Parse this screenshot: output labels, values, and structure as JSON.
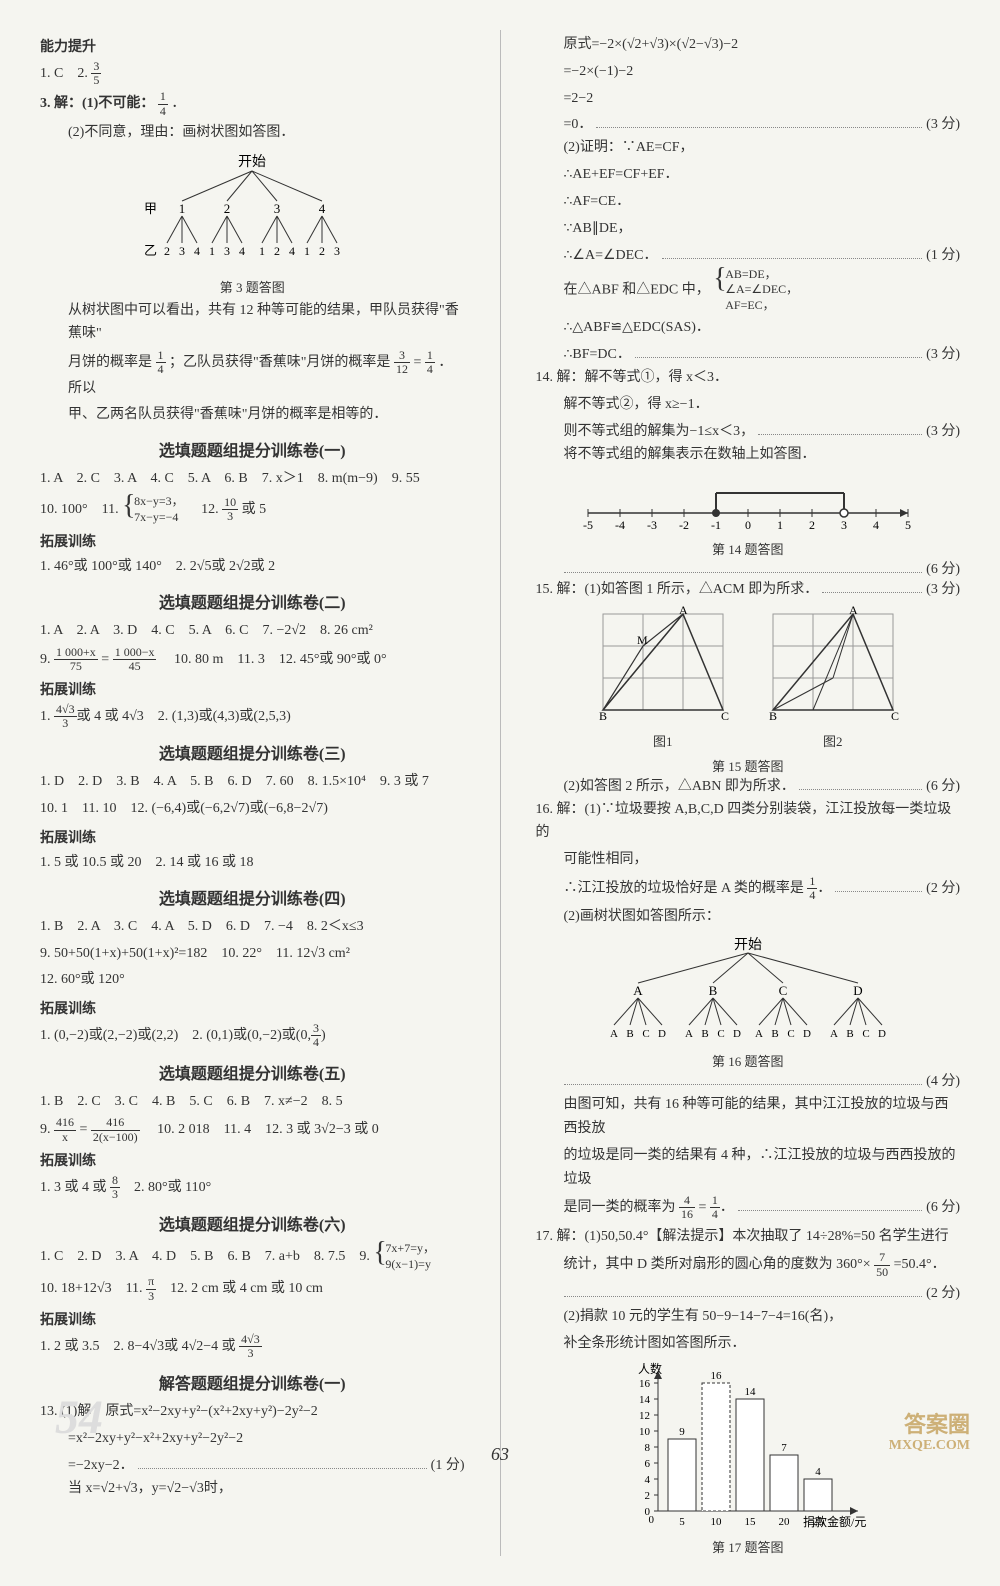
{
  "left": {
    "ability_head": "能力提升",
    "a1": "1. C　2. ",
    "a1_frac_num": "3",
    "a1_frac_den": "5",
    "a3_1": "3. 解：(1)不可能：",
    "a3_1_frac_num": "1",
    "a3_1_frac_den": "4",
    "a3_1_tail": "．",
    "a3_2": "(2)不同意，理由：画树状图如答图．",
    "tree_title": "开始",
    "tree_jia": "甲",
    "tree_yi": "乙",
    "tree_caption": "第 3 题答图",
    "a3_txt1": "从树状图中可以看出，共有 12 种等可能的结果，甲队员获得\"香蕉味\"",
    "a3_txt2a": "月饼的概率是 ",
    "a3_txt2b": "；乙队员获得\"香蕉味\"月饼的概率是 ",
    "a3_txt2c": " = ",
    "a3_txt2d": "．所以",
    "a3_f1n": "1",
    "a3_f1d": "4",
    "a3_f2n": "3",
    "a3_f2d": "12",
    "a3_f3n": "1",
    "a3_f3d": "4",
    "a3_txt3": "甲、乙两名队员获得\"香蕉味\"月饼的概率是相等的．",
    "s1_title": "选填题题组提分训练卷(一)",
    "s1_l1": "1. A　2. C　3. A　4. C　5. A　6. B　7. x＞1　8. m(m−9)　9. 55",
    "s1_l2a": "10. 100°　11. ",
    "s1_sys1": "8x−y=3，",
    "s1_sys2": "7x−y=−4",
    "s1_l2b": "　12. ",
    "s1_f_n": "10",
    "s1_f_d": "3",
    "s1_l2c": " 或 5",
    "s1_ext": "拓展训练",
    "s1_e1": "1. 46°或 100°或 140°　2. 2√5或 2√2或 2",
    "s2_title": "选填题题组提分训练卷(二)",
    "s2_l1": "1. A　2. A　3. D　4. C　5. A　6. C　7. −2√2　8. 26 cm²",
    "s2_l2a": "9. ",
    "s2_f1n": "1 000+x",
    "s2_f1d": "75",
    "s2_eq": " = ",
    "s2_f2n": "1 000−x",
    "s2_f2d": "45",
    "s2_l2b": "　10. 80 m　11. 3　12. 45°或 90°或 0°",
    "s2_ext": "拓展训练",
    "s2_e1a": "1. ",
    "s2_ef_n": "4√3",
    "s2_ef_d": "3",
    "s2_e1b": "或 4 或 4√3　2. (1,3)或(4,3)或(2,5,3)",
    "s3_title": "选填题题组提分训练卷(三)",
    "s3_l1": "1. D　2. D　3. B　4. A　5. B　6. D　7. 60　8. 1.5×10⁴　9. 3 或 7",
    "s3_l2": "10. 1　11. 10　12. (−6,4)或(−6,2√7)或(−6,8−2√7)",
    "s3_ext": "拓展训练",
    "s3_e1": "1. 5 或 10.5 或 20　2. 14 或 16 或 18",
    "s4_title": "选填题题组提分训练卷(四)",
    "s4_l1": "1. B　2. A　3. C　4. A　5. D　6. D　7. −4　8. 2＜x≤3",
    "s4_l2": "9. 50+50(1+x)+50(1+x)²=182　10. 22°　11. 12√3 cm²",
    "s4_l3": "12. 60°或 120°",
    "s4_ext": "拓展训练",
    "s4_e1a": "1. (0,−2)或(2,−2)或(2,2)　2. (0,1)或(0,−2)或(0,",
    "s4_ef_n": "3",
    "s4_ef_d": "4",
    "s4_e1b": ")",
    "s5_title": "选填题题组提分训练卷(五)",
    "s5_l1": "1. B　2. C　3. C　4. B　5. C　6. B　7. x≠−2　8. 5",
    "s5_l2a": "9. ",
    "s5_f1n": "416",
    "s5_f1d": "x",
    "s5_eq": " = ",
    "s5_f2n": "416",
    "s5_f2d": "2(x−100)",
    "s5_l2b": "　10. 2 018　11. 4　12. 3 或 3√2−3 或 0",
    "s5_ext": "拓展训练",
    "s5_e1a": "1. 3 或 4 或 ",
    "s5_ef_n": "8",
    "s5_ef_d": "3",
    "s5_e1b": "　2. 80°或 110°",
    "s6_title": "选填题题组提分训练卷(六)",
    "s6_l1a": "1. C　2. D　3. A　4. D　5. B　6. B　7. a+b　8. 7.5　9. ",
    "s6_sys1": "7x+7=y，",
    "s6_sys2": "9(x−1)=y",
    "s6_l2a": "10. 18+12√3　11. ",
    "s6_f_n": "π",
    "s6_f_d": "3",
    "s6_l2b": "　12. 2 cm 或 4 cm 或 10 cm",
    "s6_ext": "拓展训练",
    "s6_e1a": "1. 2 或 3.5　2. 8−4√3或 4√2−4 或 ",
    "s6_ef_n": "4√3",
    "s6_ef_d": "3",
    "ans_title": "解答题题组提分训练卷(一)",
    "ans_13a": "13. (1)解：原式=x²−2xy+y²−(x²+2xy+y²)−2y²−2",
    "ans_13b": "=x²−2xy+y²−x²+2xy+y²−2y²−2",
    "ans_13c_txt": "=−2xy−2．",
    "ans_13c_pts": "(1 分)",
    "ans_13d": "当 x=√2+√3，y=√2−√3时，"
  },
  "right": {
    "r1": "原式=−2×(√2+√3)×(√2−√3)−2",
    "r2": "=−2×(−1)−2",
    "r3": "=2−2",
    "r4_txt": "=0．",
    "r4_pts": "(3 分)",
    "r5": "(2)证明：∵AE=CF，",
    "r6": "∴AE+EF=CF+EF．",
    "r7": "∴AF=CE．",
    "r8": "∵AB∥DE，",
    "r9_txt": "∴∠A=∠DEC．",
    "r9_pts": "(1 分)",
    "r10a": "在△ABF 和△EDC 中，",
    "r10_s1": "AB=DE，",
    "r10_s2": "∠A=∠DEC，",
    "r10_s3": "AF=EC，",
    "r11": "∴△ABF≌△EDC(SAS)．",
    "r12_txt": "∴BF=DC．",
    "r12_pts": "(3 分)",
    "r14_1": "14. 解：解不等式①，得 x＜3．",
    "r14_2_txt": "解不等式②，得 x≥−1．",
    "r14_3_txt": "则不等式组的解集为−1≤x＜3，",
    "r14_3_pts": "(3 分)",
    "r14_4": "将不等式组的解集表示在数轴上如答图．",
    "r14_caption": "第 14 题答图",
    "r14_pts": "(6 分)",
    "r15_1_txt": "15. 解：(1)如答图 1 所示，△ACM 即为所求．",
    "r15_1_pts": "(3 分)",
    "r15_fig1": "图1",
    "r15_fig2": "图2",
    "r15_caption": "第 15 题答图",
    "r15_2_txt": "(2)如答图 2 所示，△ABN 即为所求．",
    "r15_2_pts": "(6 分)",
    "r16_1": "16. 解：(1)∵垃圾要按 A,B,C,D 四类分别装袋，江江投放每一类垃圾的",
    "r16_2": "可能性相同，",
    "r16_3a": "∴江江投放的垃圾恰好是 A 类的概率是 ",
    "r16_3_fn": "1",
    "r16_3_fd": "4",
    "r16_3b": "．",
    "r16_3_pts": "(2 分)",
    "r16_4": "(2)画树状图如答图所示：",
    "r16_tree_t": "开始",
    "r16_caption": "第 16 题答图",
    "r16_pts4": "(4 分)",
    "r16_5": "由图可知，共有 16 种等可能的结果，其中江江投放的垃圾与西西投放",
    "r16_6": "的垃圾是同一类的结果有 4 种，∴江江投放的垃圾与西西投放的垃圾",
    "r16_7a": "是同一类的概率为 ",
    "r16_7_f1n": "4",
    "r16_7_f1d": "16",
    "r16_7_eq": " = ",
    "r16_7_f2n": "1",
    "r16_7_f2d": "4",
    "r16_7b": "．",
    "r16_7_pts": "(6 分)",
    "r17_1a": "17. 解：(1)50,50.4°【解法提示】本次抽取了 14÷28%=50 名学生进行",
    "r17_1b_a": "统计，其中 D 类所对扇形的圆心角的度数为 360°× ",
    "r17_1b_fn": "7",
    "r17_1b_fd": "50",
    "r17_1b_b": " =50.4°．",
    "r17_pts": "(2 分)",
    "r17_2": "(2)捐款 10 元的学生有 50−9−14−7−4=16(名)，",
    "r17_3": "补全条形统计图如答图所示．",
    "r17_ylabel": "人数",
    "r17_xlabel": "捐款金额/元",
    "r17_caption": "第 17 题答图",
    "bar": {
      "cats": [
        "5",
        "10",
        "15",
        "20",
        "25"
      ],
      "vals": [
        9,
        16,
        14,
        7,
        4
      ],
      "yticks": [
        0,
        2,
        4,
        6,
        8,
        10,
        12,
        14,
        16
      ],
      "bar_color": "#ffffff",
      "border": "#333",
      "dashed_bar_index": 1
    }
  },
  "numberline": {
    "ticks": [
      -5,
      -4,
      -3,
      -2,
      -1,
      0,
      1,
      2,
      3,
      4,
      5
    ],
    "start": -1,
    "end": 3,
    "start_filled": true,
    "end_filled": false
  },
  "watermark1": "答案圈",
  "watermark2": "MXQE.COM",
  "pagenum": "63",
  "faint": "54"
}
